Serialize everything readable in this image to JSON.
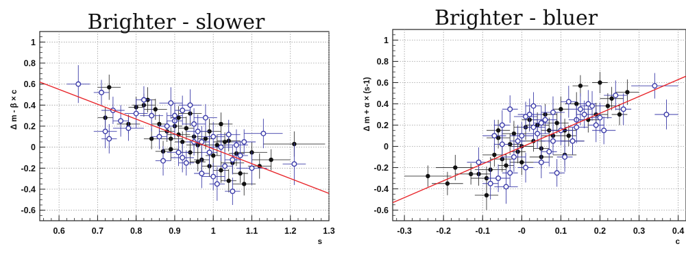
{
  "chart_data": [
    {
      "type": "scatter",
      "title": "Brighter - slower",
      "xlabel": "s",
      "ylabel": "Δ m - β × c",
      "xlim": [
        0.55,
        1.3
      ],
      "ylim": [
        -0.7,
        1.1
      ],
      "xticks": [
        0.6,
        0.7,
        0.8,
        0.9,
        1.0,
        1.1,
        1.2,
        1.3
      ],
      "xtick_labels": [
        "0.6",
        "0.7",
        "0.8",
        "0.9",
        "1",
        "1.1",
        "1.2",
        "1.3"
      ],
      "yticks": [
        -0.6,
        -0.4,
        -0.2,
        0,
        0.2,
        0.4,
        0.6,
        0.8,
        1.0
      ],
      "ytick_labels": [
        "-0.6",
        "-0.4",
        "-0.2",
        "0",
        "0.2",
        "0.4",
        "0.6",
        "0.8",
        "1"
      ],
      "grid": true,
      "fit_line": {
        "x": [
          0.55,
          1.3
        ],
        "y": [
          0.62,
          -0.44
        ],
        "color": "#e8262b"
      },
      "series": [
        {
          "marker": "filled-circle",
          "color": "#111111",
          "x": [
            0.72,
            0.73,
            0.78,
            0.8,
            0.82,
            0.83,
            0.85,
            0.86,
            0.88,
            0.89,
            0.9,
            0.91,
            0.92,
            0.93,
            0.94,
            0.95,
            0.96,
            0.97,
            0.98,
            0.99,
            1.0,
            1.01,
            1.02,
            1.03,
            1.04,
            1.05,
            1.06,
            1.07,
            1.08,
            1.1,
            1.12,
            1.15,
            1.21,
            0.87,
            0.91,
            0.94,
            0.99,
            1.02,
            0.96,
            0.84,
            0.89,
            1.04
          ],
          "y": [
            0.28,
            0.57,
            0.22,
            0.38,
            0.4,
            0.45,
            0.36,
            0.22,
            0.15,
            0.08,
            0.2,
            0.12,
            0.05,
            0.18,
            -0.05,
            0.1,
            0.02,
            -0.12,
            0.08,
            0.15,
            -0.08,
            0.02,
            -0.22,
            0.05,
            -0.32,
            -0.15,
            -0.06,
            -0.25,
            -0.35,
            -0.05,
            -0.18,
            -0.12,
            0.03,
            -0.04,
            0.28,
            0.32,
            -0.18,
            0.22,
            -0.14,
            0.08,
            -0.02,
            0.06
          ],
          "xerr": [
            0.02,
            0.03,
            0.03,
            0.02,
            0.03,
            0.02,
            0.03,
            0.02,
            0.02,
            0.03,
            0.02,
            0.03,
            0.02,
            0.02,
            0.03,
            0.02,
            0.03,
            0.02,
            0.02,
            0.03,
            0.02,
            0.03,
            0.02,
            0.03,
            0.02,
            0.03,
            0.02,
            0.02,
            0.03,
            0.04,
            0.03,
            0.05,
            0.08,
            0.02,
            0.02,
            0.03,
            0.02,
            0.03,
            0.02,
            0.02,
            0.02,
            0.03
          ],
          "yerr": [
            0.1,
            0.12,
            0.09,
            0.1,
            0.11,
            0.12,
            0.1,
            0.09,
            0.1,
            0.11,
            0.12,
            0.09,
            0.1,
            0.11,
            0.12,
            0.1,
            0.09,
            0.11,
            0.1,
            0.12,
            0.11,
            0.1,
            0.12,
            0.09,
            0.11,
            0.1,
            0.12,
            0.09,
            0.11,
            0.1,
            0.12,
            0.1,
            0.12,
            0.1,
            0.11,
            0.12,
            0.1,
            0.11,
            0.09,
            0.1,
            0.11,
            0.1
          ]
        },
        {
          "marker": "open-circle",
          "color": "#3a3aa8",
          "x": [
            0.65,
            0.71,
            0.72,
            0.73,
            0.74,
            0.76,
            0.78,
            0.8,
            0.82,
            0.84,
            0.86,
            0.87,
            0.89,
            0.9,
            0.91,
            0.92,
            0.93,
            0.94,
            0.95,
            0.96,
            0.97,
            0.98,
            0.99,
            1.0,
            1.01,
            1.02,
            1.03,
            1.04,
            1.05,
            1.06,
            1.07,
            1.08,
            1.1,
            1.13,
            1.21,
            0.88,
            0.92,
            0.97,
            1.0,
            1.05,
            0.9,
            0.95
          ],
          "y": [
            0.6,
            0.52,
            0.15,
            0.08,
            0.35,
            0.25,
            0.18,
            0.32,
            0.45,
            0.3,
            0.1,
            -0.13,
            0.42,
            0.25,
            -0.05,
            0.35,
            -0.15,
            0.4,
            0.05,
            0.15,
            -0.25,
            0.28,
            -0.05,
            0.1,
            -0.35,
            0.0,
            -0.18,
            0.12,
            -0.42,
            0.02,
            -0.08,
            0.05,
            -0.2,
            0.13,
            -0.16,
            0.2,
            -0.1,
            0.05,
            -0.28,
            -0.12,
            0.3,
            0.22
          ],
          "xerr": [
            0.03,
            0.02,
            0.03,
            0.02,
            0.03,
            0.02,
            0.04,
            0.03,
            0.02,
            0.03,
            0.02,
            0.02,
            0.03,
            0.02,
            0.03,
            0.02,
            0.02,
            0.03,
            0.02,
            0.03,
            0.02,
            0.03,
            0.02,
            0.03,
            0.02,
            0.03,
            0.02,
            0.03,
            0.02,
            0.03,
            0.02,
            0.03,
            0.04,
            0.05,
            0.03,
            0.02,
            0.03,
            0.02,
            0.03,
            0.02,
            0.02,
            0.03
          ],
          "yerr": [
            0.18,
            0.12,
            0.16,
            0.14,
            0.13,
            0.15,
            0.12,
            0.14,
            0.13,
            0.15,
            0.12,
            0.14,
            0.15,
            0.16,
            0.13,
            0.14,
            0.12,
            0.15,
            0.13,
            0.16,
            0.14,
            0.13,
            0.15,
            0.14,
            0.16,
            0.13,
            0.15,
            0.14,
            0.13,
            0.15,
            0.14,
            0.12,
            0.16,
            0.14,
            0.2,
            0.13,
            0.14,
            0.15,
            0.13,
            0.14,
            0.12,
            0.15
          ]
        }
      ]
    },
    {
      "type": "scatter",
      "title": "Brighter - bluer",
      "xlabel": "c",
      "ylabel": "Δ m + α × (s-1)",
      "xlim": [
        -0.33,
        0.42
      ],
      "ylim": [
        -0.7,
        1.1
      ],
      "xticks": [
        -0.3,
        -0.2,
        -0.1,
        0,
        0.1,
        0.2,
        0.3,
        0.4
      ],
      "xtick_labels": [
        "-0.3",
        "-0.2",
        "-0.1",
        "-0",
        "0.1",
        "0.2",
        "0.3",
        "0.4"
      ],
      "yticks": [
        -0.6,
        -0.4,
        -0.2,
        0,
        0.2,
        0.4,
        0.6,
        0.8,
        1.0
      ],
      "ytick_labels": [
        "-0.6",
        "-0.4",
        "-0.2",
        "0",
        "0.2",
        "0.4",
        "0.6",
        "0.8",
        "1"
      ],
      "grid": true,
      "fit_line": {
        "x": [
          -0.33,
          0.42
        ],
        "y": [
          -0.53,
          0.66
        ],
        "color": "#e8262b"
      },
      "series": [
        {
          "marker": "filled-circle",
          "color": "#111111",
          "x": [
            -0.24,
            -0.19,
            -0.17,
            -0.13,
            -0.11,
            -0.09,
            -0.08,
            -0.07,
            -0.06,
            -0.05,
            -0.04,
            -0.03,
            -0.02,
            -0.01,
            0.0,
            0.01,
            0.02,
            0.03,
            0.04,
            0.05,
            0.06,
            0.07,
            0.08,
            0.09,
            0.1,
            0.11,
            0.12,
            0.13,
            0.14,
            0.15,
            0.17,
            0.19,
            0.2,
            0.22,
            0.23,
            0.25,
            0.27,
            -0.09,
            -0.06,
            0.0,
            0.05,
            0.11
          ],
          "y": [
            -0.28,
            -0.35,
            -0.2,
            -0.26,
            -0.26,
            -0.46,
            -0.22,
            -0.08,
            0.08,
            -0.12,
            -0.18,
            0.02,
            0.12,
            -0.05,
            0.0,
            0.18,
            0.25,
            0.05,
            0.2,
            -0.02,
            0.3,
            0.15,
            0.1,
            0.22,
            0.35,
            0.15,
            0.1,
            0.05,
            0.4,
            0.57,
            0.25,
            0.3,
            0.6,
            0.38,
            0.45,
            0.3,
            0.51,
            -0.3,
            0.15,
            -0.15,
            -0.1,
            -0.08
          ],
          "xerr": [
            0.06,
            0.04,
            0.05,
            0.04,
            0.03,
            0.03,
            0.04,
            0.03,
            0.03,
            0.03,
            0.02,
            0.03,
            0.03,
            0.02,
            0.03,
            0.03,
            0.02,
            0.03,
            0.03,
            0.02,
            0.03,
            0.02,
            0.03,
            0.03,
            0.02,
            0.03,
            0.02,
            0.03,
            0.03,
            0.02,
            0.03,
            0.03,
            0.02,
            0.03,
            0.03,
            0.02,
            0.03,
            0.04,
            0.03,
            0.03,
            0.03,
            0.03
          ],
          "yerr": [
            0.1,
            0.11,
            0.12,
            0.1,
            0.11,
            0.14,
            0.12,
            0.11,
            0.1,
            0.12,
            0.11,
            0.1,
            0.12,
            0.11,
            0.1,
            0.12,
            0.11,
            0.1,
            0.12,
            0.11,
            0.1,
            0.12,
            0.11,
            0.1,
            0.12,
            0.11,
            0.1,
            0.12,
            0.11,
            0.1,
            0.12,
            0.11,
            0.1,
            0.12,
            0.11,
            0.1,
            0.12,
            0.11,
            0.1,
            0.12,
            0.11,
            0.1
          ]
        },
        {
          "marker": "open-circle",
          "color": "#3a3aa8",
          "x": [
            -0.11,
            -0.08,
            -0.06,
            -0.05,
            -0.04,
            -0.03,
            -0.02,
            -0.01,
            0.0,
            0.01,
            0.02,
            0.03,
            0.04,
            0.05,
            0.06,
            0.07,
            0.08,
            0.09,
            0.1,
            0.12,
            0.13,
            0.14,
            0.15,
            0.16,
            0.18,
            0.19,
            0.21,
            0.24,
            0.26,
            0.34,
            0.37,
            -0.07,
            -0.03,
            0.01,
            0.05,
            0.08,
            0.11,
            0.14,
            0.17,
            0.2,
            -0.05,
            0.03
          ],
          "y": [
            -0.15,
            -0.35,
            -0.3,
            0.2,
            -0.38,
            0.35,
            -0.1,
            0.05,
            0.1,
            -0.2,
            0.3,
            0.38,
            0.12,
            0.22,
            0.25,
            -0.05,
            0.32,
            -0.25,
            0.15,
            0.42,
            0.05,
            0.25,
            0.35,
            0.3,
            0.38,
            0.2,
            0.15,
            0.48,
            0.35,
            0.57,
            0.3,
            0.1,
            -0.25,
            0.28,
            -0.15,
            0.05,
            -0.1,
            0.18,
            0.4,
            0.27,
            0.02,
            0.18
          ],
          "xerr": [
            0.03,
            0.02,
            0.03,
            0.02,
            0.03,
            0.02,
            0.03,
            0.02,
            0.03,
            0.02,
            0.03,
            0.02,
            0.03,
            0.02,
            0.03,
            0.02,
            0.03,
            0.02,
            0.03,
            0.02,
            0.03,
            0.02,
            0.03,
            0.02,
            0.03,
            0.02,
            0.03,
            0.03,
            0.02,
            0.06,
            0.03,
            0.03,
            0.02,
            0.03,
            0.02,
            0.03,
            0.02,
            0.03,
            0.02,
            0.03,
            0.02,
            0.03
          ],
          "yerr": [
            0.14,
            0.15,
            0.13,
            0.14,
            0.16,
            0.13,
            0.14,
            0.15,
            0.13,
            0.14,
            0.15,
            0.13,
            0.14,
            0.16,
            0.13,
            0.14,
            0.15,
            0.13,
            0.14,
            0.15,
            0.13,
            0.14,
            0.15,
            0.13,
            0.14,
            0.16,
            0.13,
            0.14,
            0.15,
            0.12,
            0.14,
            0.15,
            0.13,
            0.14,
            0.15,
            0.13,
            0.14,
            0.15,
            0.13,
            0.14,
            0.15,
            0.13
          ]
        }
      ]
    }
  ]
}
